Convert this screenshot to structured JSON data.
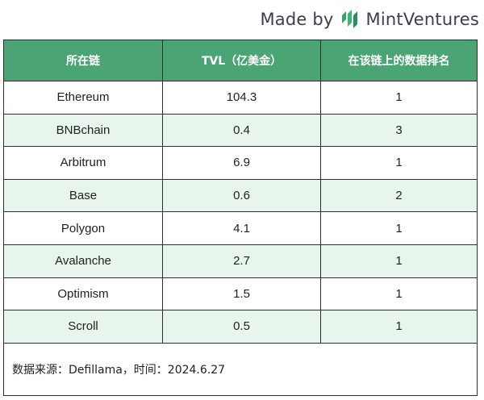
{
  "brand": {
    "made_by": "Made by",
    "name": "MintVentures",
    "logo_icon": "mint-leaf-icon",
    "logo_color": "#2ea56b",
    "text_color": "#3a3f4b"
  },
  "table": {
    "header_color": "#4aa474",
    "alt_row_color": "#e8f5ed",
    "columns": [
      "所在链",
      "TVL（亿美金）",
      "在该链上的数据排名"
    ],
    "rows": [
      {
        "chain": "Ethereum",
        "tvl": "104.3",
        "rank": "1"
      },
      {
        "chain": "BNBchain",
        "tvl": "0.4",
        "rank": "3"
      },
      {
        "chain": "Arbitrum",
        "tvl": "6.9",
        "rank": "1"
      },
      {
        "chain": "Base",
        "tvl": "0.6",
        "rank": "2"
      },
      {
        "chain": "Polygon",
        "tvl": "4.1",
        "rank": "1"
      },
      {
        "chain": "Avalanche",
        "tvl": "2.7",
        "rank": "1"
      },
      {
        "chain": "Optimism",
        "tvl": "1.5",
        "rank": "1"
      },
      {
        "chain": "Scroll",
        "tvl": "0.5",
        "rank": "1"
      }
    ],
    "footnote": "数据来源：Defillama，时间：2024.6.27"
  }
}
